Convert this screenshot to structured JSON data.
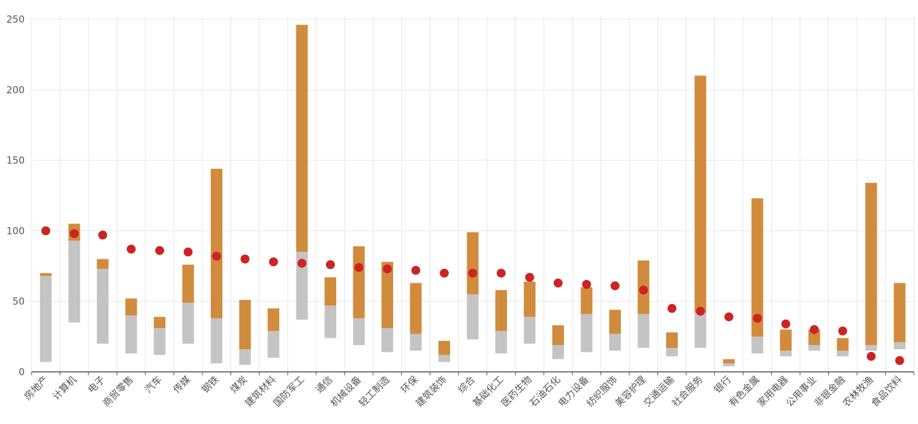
{
  "chart_data": {
    "type": "bar",
    "ylim": [
      0,
      250
    ],
    "yticks": [
      0,
      50,
      100,
      150,
      200,
      250
    ],
    "grid": true,
    "colors": {
      "range_low": "#c4c4c4",
      "range_high": "#d18b3c",
      "marker": "#cc2323",
      "grid": "#e6e8ee",
      "axis": "#555555"
    },
    "categories": [
      "房地产",
      "计算机",
      "电子",
      "商贸零售",
      "汽车",
      "传媒",
      "钢铁",
      "煤炭",
      "建筑材料",
      "国防军工",
      "通信",
      "机械设备",
      "轻工制造",
      "环保",
      "建筑装饰",
      "综合",
      "基础化工",
      "医药生物",
      "石油石化",
      "电力设备",
      "纺织服饰",
      "美容护理",
      "交通运输",
      "社会服务",
      "银行",
      "有色金属",
      "家用电器",
      "公用事业",
      "非银金融",
      "农林牧渔",
      "食品饮料"
    ],
    "series": [
      {
        "role": "range_low_bottom",
        "values": [
          7,
          35,
          20,
          13,
          12,
          20,
          6,
          5,
          10,
          37,
          24,
          19,
          14,
          15,
          7,
          23,
          13,
          20,
          9,
          14,
          15,
          17,
          11,
          17,
          4,
          13,
          11,
          15,
          11,
          15,
          16
        ]
      },
      {
        "role": "range_low_top",
        "values": [
          68,
          93,
          73,
          40,
          31,
          49,
          38,
          16,
          29,
          85,
          47,
          38,
          31,
          27,
          12,
          55,
          29,
          39,
          19,
          41,
          27,
          41,
          17,
          42,
          6,
          25,
          15,
          19,
          15,
          19,
          21
        ]
      },
      {
        "role": "range_high_top",
        "values": [
          70,
          105,
          80,
          52,
          39,
          76,
          144,
          51,
          45,
          246,
          67,
          89,
          78,
          63,
          22,
          99,
          58,
          64,
          33,
          60,
          44,
          79,
          28,
          210,
          9,
          123,
          30,
          30,
          24,
          134,
          63
        ]
      },
      {
        "role": "marker",
        "values": [
          100,
          98,
          97,
          87,
          86,
          85,
          82,
          80,
          78,
          77,
          76,
          74,
          73,
          72,
          70,
          70,
          70,
          67,
          63,
          62,
          61,
          58,
          45,
          43,
          39,
          38,
          34,
          30,
          29,
          11,
          8
        ]
      }
    ]
  }
}
